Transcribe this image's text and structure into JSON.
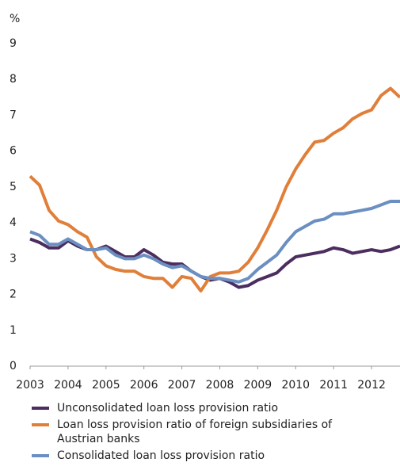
{
  "chart_data": {
    "type": "line",
    "y_label": "%",
    "x": [
      2003,
      2003.25,
      2003.5,
      2003.75,
      2004,
      2004.25,
      2004.5,
      2004.75,
      2005,
      2005.25,
      2005.5,
      2005.75,
      2006,
      2006.25,
      2006.5,
      2006.75,
      2007,
      2007.25,
      2007.5,
      2007.75,
      2008,
      2008.25,
      2008.5,
      2008.75,
      2009,
      2009.25,
      2009.5,
      2009.75,
      2010,
      2010.25,
      2010.5,
      2010.75,
      2011,
      2011.25,
      2011.5,
      2011.75,
      2012,
      2012.25,
      2012.5,
      2012.75
    ],
    "xlim": [
      2003,
      2012.75
    ],
    "xticks": [
      2003,
      2004,
      2005,
      2006,
      2007,
      2008,
      2009,
      2010,
      2011,
      2012
    ],
    "ylim": [
      0,
      9
    ],
    "yticks": [
      0,
      1,
      2,
      3,
      4,
      5,
      6,
      7,
      8,
      9
    ],
    "grid": false,
    "series": [
      {
        "name": "Unconsolidated loan loss provision ratio",
        "color": "#4b2d5f",
        "values": [
          3.55,
          3.45,
          3.3,
          3.3,
          3.5,
          3.35,
          3.25,
          3.25,
          3.35,
          3.2,
          3.05,
          3.05,
          3.25,
          3.1,
          2.9,
          2.85,
          2.85,
          2.65,
          2.5,
          2.4,
          2.45,
          2.35,
          2.2,
          2.25,
          2.4,
          2.5,
          2.6,
          2.85,
          3.05,
          3.1,
          3.15,
          3.2,
          3.3,
          3.25,
          3.15,
          3.2,
          3.25,
          3.2,
          3.25,
          3.35
        ]
      },
      {
        "name": "Loan loss provision ratio of foreign subsidiaries of Austrian banks",
        "color": "#e07f3a",
        "values": [
          5.3,
          5.05,
          4.35,
          4.05,
          3.95,
          3.75,
          3.6,
          3.05,
          2.8,
          2.7,
          2.65,
          2.65,
          2.5,
          2.45,
          2.45,
          2.2,
          2.5,
          2.45,
          2.1,
          2.5,
          2.6,
          2.6,
          2.65,
          2.9,
          3.3,
          3.8,
          4.35,
          5.0,
          5.5,
          5.9,
          6.25,
          6.3,
          6.5,
          6.65,
          6.9,
          7.05,
          7.15,
          7.55,
          7.75,
          7.5
        ]
      },
      {
        "name": "Consolidated loan loss provision ratio",
        "color": "#6a8fc0",
        "values": [
          3.75,
          3.65,
          3.4,
          3.4,
          3.55,
          3.4,
          3.25,
          3.25,
          3.3,
          3.1,
          3.0,
          3.0,
          3.1,
          3.0,
          2.85,
          2.75,
          2.8,
          2.65,
          2.5,
          2.45,
          2.45,
          2.4,
          2.35,
          2.45,
          2.7,
          2.9,
          3.1,
          3.45,
          3.75,
          3.9,
          4.05,
          4.1,
          4.25,
          4.25,
          4.3,
          4.35,
          4.4,
          4.5,
          4.6,
          4.6
        ]
      }
    ]
  }
}
